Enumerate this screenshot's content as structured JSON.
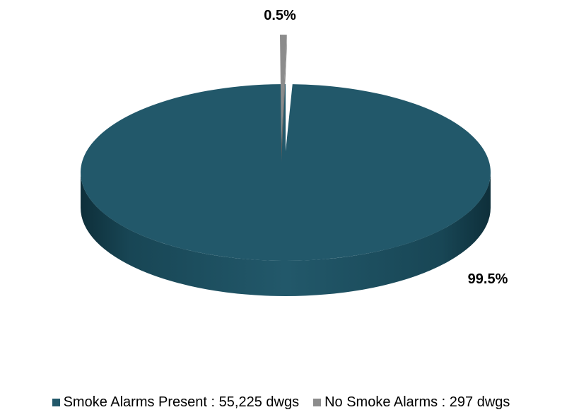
{
  "chart_data": {
    "type": "pie",
    "style": "3d",
    "title": "",
    "slices": [
      {
        "label": "Smoke Alarms Present : 55,225 dwgs",
        "value": 55225,
        "percent_label": "99.5%",
        "color": "#22586a"
      },
      {
        "label": "No Smoke Alarms : 297 dwgs",
        "value": 297,
        "percent_label": "0.5%",
        "color": "#8c8c8c",
        "exploded": true
      }
    ],
    "legend_position": "bottom"
  }
}
